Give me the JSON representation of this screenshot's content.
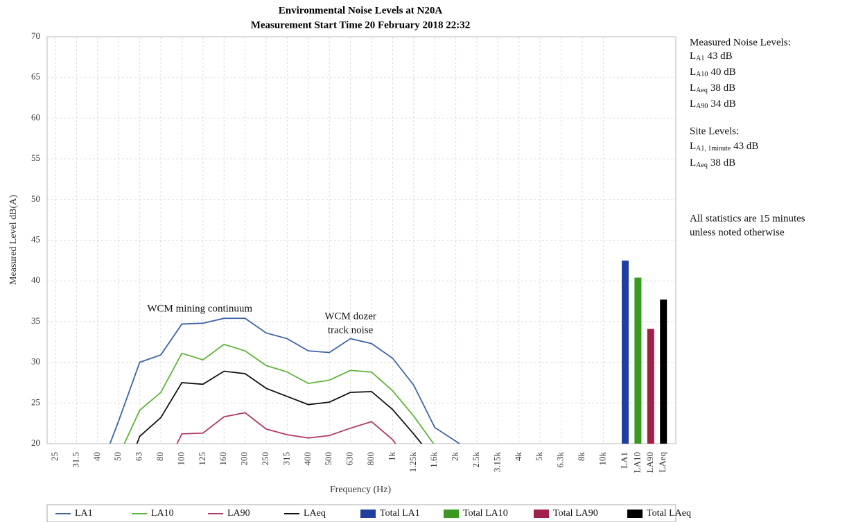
{
  "chart_data": {
    "type": "line",
    "title": [
      "Environmental Noise Levels at N20A",
      "Measurement Start Time 20 February 2018 22:32"
    ],
    "xlabel": "Frequency (Hz)",
    "ylabel": "Measured Level dB(A)",
    "categories": [
      "25",
      "31.5",
      "40",
      "50",
      "63",
      "80",
      "100",
      "125",
      "160",
      "200",
      "250",
      "315",
      "400",
      "500",
      "630",
      "800",
      "1k",
      "1.25k",
      "1.6k",
      "2k",
      "2.5k",
      "3.15k",
      "4k",
      "5k",
      "6.3k",
      "8k",
      "10k"
    ],
    "ylim": [
      20,
      70
    ],
    "yticks": [
      20,
      25,
      30,
      35,
      40,
      45,
      50,
      55,
      60,
      65,
      70
    ],
    "grid": true,
    "series": [
      {
        "name": "LA1",
        "color": "#3d64a8",
        "values": [
          null,
          null,
          16,
          22.8,
          30.0,
          30.9,
          34.7,
          34.8,
          35.4,
          35.4,
          33.6,
          32.9,
          31.4,
          31.2,
          32.9,
          32.3,
          30.5,
          27.2,
          22.0,
          20.3,
          18.5,
          null,
          null,
          null,
          null,
          null,
          null
        ]
      },
      {
        "name": "LA10",
        "color": "#5fb33a",
        "values": [
          null,
          null,
          null,
          18.5,
          24.1,
          26.3,
          31.1,
          30.3,
          32.2,
          31.4,
          29.6,
          28.8,
          27.4,
          27.8,
          29.0,
          28.8,
          26.5,
          23.4,
          19.8,
          null,
          null,
          null,
          null,
          null,
          null,
          null,
          null
        ]
      },
      {
        "name": "LA90",
        "color": "#b03a6a",
        "values": [
          null,
          null,
          null,
          null,
          null,
          16,
          21.2,
          21.3,
          23.3,
          23.8,
          21.8,
          21.1,
          20.7,
          21.0,
          21.9,
          22.7,
          20.5,
          17,
          null,
          null,
          null,
          null,
          null,
          null,
          null,
          null,
          null
        ]
      },
      {
        "name": "LAeq",
        "color": "#111111",
        "values": [
          null,
          null,
          null,
          14,
          20.9,
          23.2,
          27.5,
          27.3,
          28.9,
          28.6,
          26.8,
          25.8,
          24.8,
          25.1,
          26.3,
          26.4,
          24.2,
          21.2,
          18,
          null,
          null,
          null,
          null,
          null,
          null,
          null,
          null
        ]
      }
    ],
    "bar_categories": [
      "LA1",
      "LA10",
      "LA90",
      "LAeq"
    ],
    "bar_series": [
      {
        "name": "Total LA1",
        "color": "#1f3f9e",
        "value": 42.5
      },
      {
        "name": "Total LA10",
        "color": "#3a9a1f",
        "value": 40.4
      },
      {
        "name": "Total LA90",
        "color": "#a0204a",
        "value": 34.1
      },
      {
        "name": "Total LAeq",
        "color": "#000000",
        "value": 37.7
      }
    ],
    "annotations": [
      {
        "lines": [
          "WCM mining continuum"
        ],
        "category": 8,
        "y": 36.5
      },
      {
        "lines": [
          "WCM dozer",
          "track noise"
        ],
        "category": 14,
        "y": 35.6
      }
    ],
    "side_panel": {
      "measured_title": "Measured Noise Levels:",
      "measured": [
        {
          "main": "L",
          "sub": "A1",
          "value": "43 dB"
        },
        {
          "main": "L",
          "sub": "A10",
          "value": "40 dB"
        },
        {
          "main": "L",
          "sub": "Aeq",
          "value": "38 dB"
        },
        {
          "main": "L",
          "sub": "A90",
          "value": "34 dB"
        }
      ],
      "site_title": "Site Levels:",
      "site": [
        {
          "main": "L",
          "sub": "A1, 1minute",
          "value": "43 dB"
        },
        {
          "main": "L",
          "sub": "Aeq",
          "value": "38 dB"
        }
      ],
      "note": [
        "All statistics are 15 minutes",
        "unless noted otherwise"
      ]
    }
  }
}
